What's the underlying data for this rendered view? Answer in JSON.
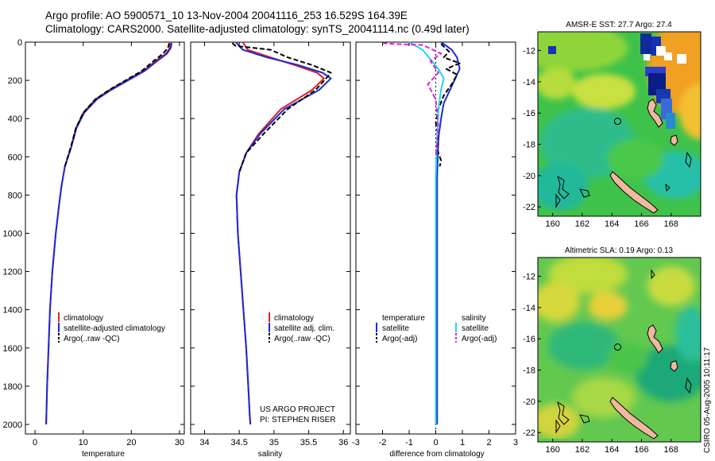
{
  "header": {
    "title_line1": "Argo profile: AO 5900571_10 13-Nov-2004 20041116_253 16.529S 164.39E",
    "title_line2": "Climatology: CARS2000. Satellite-adjusted climatology: synTS_20041114.nc (0.49d later)"
  },
  "colors": {
    "climatology": "#e02020",
    "satellite": "#1a2bd6",
    "argo": "#000000",
    "salinity_satellite": "#22d8e8",
    "salinity_argo": "#e020e0"
  },
  "project_note": {
    "line1": "US ARGO PROJECT",
    "line2": "PI: STEPHEN RISER"
  },
  "timestamp": "CSIRO 05-Aug-2005 10:11:17",
  "chart_data": [
    {
      "type": "line",
      "name": "temperature-profile",
      "xlabel": "temperature",
      "ylabel": "",
      "xlim": [
        -2,
        31
      ],
      "ylim": [
        0,
        2050
      ],
      "y_inverted": true,
      "xticks": [
        0,
        10,
        20,
        30
      ],
      "yticks": [
        0,
        200,
        400,
        600,
        800,
        1000,
        1200,
        1400,
        1600,
        1800,
        2000
      ],
      "series": [
        {
          "name": "climatology",
          "color_key": "climatology",
          "dash": false,
          "x": [
            28.2,
            28.0,
            27.2,
            25.0,
            22.5,
            19.0,
            15.5,
            12.5,
            10.0,
            8.5,
            7.5,
            6.2,
            5.5,
            5.0,
            4.3,
            3.6,
            3.1,
            2.8,
            2.5,
            2.35,
            2.3
          ],
          "y": [
            5,
            30,
            60,
            100,
            150,
            200,
            250,
            300,
            370,
            450,
            550,
            650,
            750,
            850,
            1000,
            1200,
            1400,
            1600,
            1800,
            1950,
            2000
          ]
        },
        {
          "name": "satellite-adjusted climatology",
          "color_key": "satellite",
          "dash": false,
          "x": [
            28.4,
            28.2,
            27.4,
            25.3,
            22.8,
            19.3,
            15.8,
            12.8,
            10.2,
            8.6,
            7.5,
            6.2,
            5.5,
            5.0,
            4.3,
            3.6,
            3.1,
            2.8,
            2.5,
            2.35,
            2.3
          ],
          "y": [
            5,
            30,
            60,
            100,
            150,
            200,
            250,
            300,
            370,
            450,
            550,
            650,
            750,
            850,
            1000,
            1200,
            1400,
            1600,
            1800,
            1950,
            2000
          ]
        },
        {
          "name": "Argo(..raw -QC)",
          "color_key": "argo",
          "dash": true,
          "x": [
            27.9,
            27.6,
            26.6,
            24.6,
            22.2,
            18.8,
            15.4,
            12.5,
            10.0,
            8.5,
            7.4,
            6.2
          ],
          "y": [
            5,
            30,
            60,
            100,
            150,
            200,
            250,
            300,
            370,
            450,
            550,
            650
          ]
        }
      ],
      "legend": {
        "placement": "lower-right",
        "entries": [
          "climatology",
          "satellite-adjusted climatology",
          "Argo(..raw -QC)"
        ]
      }
    },
    {
      "type": "line",
      "name": "salinity-profile",
      "xlabel": "salinity",
      "ylabel": "",
      "xlim": [
        33.8,
        36.1
      ],
      "ylim": [
        0,
        2050
      ],
      "y_inverted": true,
      "xticks": [
        34,
        34.5,
        35,
        35.5,
        36
      ],
      "series": [
        {
          "name": "climatology",
          "color_key": "climatology",
          "dash": false,
          "x": [
            34.55,
            34.62,
            34.95,
            35.3,
            35.62,
            35.72,
            35.55,
            35.1,
            34.78,
            34.6,
            34.5,
            34.46,
            34.48,
            34.52,
            34.56,
            34.6,
            34.63,
            34.65,
            34.66
          ],
          "y": [
            0,
            40,
            80,
            120,
            160,
            190,
            250,
            350,
            480,
            580,
            680,
            800,
            1000,
            1200,
            1400,
            1600,
            1800,
            1950,
            2000
          ]
        },
        {
          "name": "satellite adj. clim.",
          "color_key": "satellite",
          "dash": false,
          "x": [
            34.45,
            34.55,
            34.9,
            35.35,
            35.7,
            35.82,
            35.65,
            35.15,
            34.8,
            34.6,
            34.5,
            34.46,
            34.48,
            34.52,
            34.56,
            34.6,
            34.63,
            34.65,
            34.66
          ],
          "y": [
            0,
            40,
            80,
            120,
            160,
            190,
            250,
            350,
            480,
            580,
            680,
            800,
            1000,
            1200,
            1400,
            1600,
            1800,
            1950,
            2000
          ]
        },
        {
          "name": "Argo(..raw -QC)",
          "color_key": "argo",
          "dash": true,
          "x": [
            34.4,
            34.45,
            34.95,
            35.2,
            35.55,
            35.82,
            35.75,
            35.6,
            35.2,
            34.85,
            34.6,
            34.5
          ],
          "y": [
            5,
            20,
            40,
            80,
            120,
            160,
            190,
            250,
            350,
            480,
            580,
            680
          ]
        }
      ],
      "legend": {
        "placement": "lower-right",
        "entries": [
          "climatology",
          "satellite adj. clim.",
          "Argo(..raw -QC)"
        ]
      }
    },
    {
      "type": "line",
      "name": "difference-profile",
      "xlabel": "difference from climatology",
      "ylabel": "",
      "xlim": [
        -3,
        3
      ],
      "ylim": [
        0,
        2050
      ],
      "y_inverted": true,
      "xticks": [
        -3,
        -2,
        -1,
        0,
        1,
        2,
        3
      ],
      "series": [
        {
          "name": "temperature satellite",
          "color_key": "satellite",
          "dash": false,
          "x": [
            0.2,
            0.6,
            0.8,
            0.9,
            0.7,
            0.5,
            0.3,
            0.2,
            0.1,
            0.05,
            0.05,
            0.05
          ],
          "y": [
            0,
            40,
            80,
            140,
            200,
            260,
            320,
            400,
            500,
            700,
            1000,
            2000
          ]
        },
        {
          "name": "temperature Argo(-adj)",
          "color_key": "argo",
          "dash": true,
          "x": [
            0.2,
            0.5,
            0.3,
            0.9,
            0.4,
            0.8,
            0.6,
            0.3,
            0.1,
            0.0,
            0.1,
            0.05,
            0.2,
            0.15
          ],
          "y": [
            10,
            50,
            80,
            110,
            140,
            170,
            220,
            280,
            350,
            420,
            500,
            560,
            620,
            650
          ]
        },
        {
          "name": "salinity satellite",
          "color_key": "salinity_satellite",
          "dash": false,
          "x": [
            -1.0,
            -0.5,
            -0.2,
            0.1,
            0.3,
            0.2,
            0.1,
            0.05,
            0.0,
            0.0,
            0.0
          ],
          "y": [
            0,
            40,
            90,
            140,
            190,
            250,
            350,
            500,
            700,
            1000,
            2000
          ]
        },
        {
          "name": "salinity Argo(-adj)",
          "color_key": "salinity_argo",
          "dash": true,
          "x": [
            -2.0,
            -1.5,
            -0.5,
            0.2,
            -0.2,
            0.1,
            -0.3,
            0.0,
            0.1,
            0.0
          ],
          "y": [
            5,
            10,
            15,
            60,
            100,
            160,
            220,
            300,
            450,
            600
          ]
        }
      ],
      "legend": {
        "placement": "lower-center",
        "temperature": {
          "title": "temperature",
          "entries": [
            "satellite",
            "Argo(-adj)"
          ]
        },
        "salinity": {
          "title": "salinity",
          "entries": [
            "satellite",
            "Argo(-adj)"
          ]
        }
      }
    },
    {
      "type": "heatmap",
      "name": "sst-map",
      "title": "AMSR-E SST: 27.7 Argo: 27.4",
      "xlim": [
        159,
        170
      ],
      "ylim": [
        -22.6,
        -10.8
      ],
      "xticks": [
        160,
        162,
        164,
        166,
        168
      ],
      "xticklabels": [
        "160",
        "162",
        "164",
        "166",
        "168"
      ],
      "yticks": [
        -12,
        -14,
        -16,
        -18,
        -20,
        -22
      ],
      "yticklabels": [
        "-12",
        "-14",
        "-16",
        "-18",
        "-20",
        "-22"
      ],
      "float_position": [
        164.39,
        -16.529
      ]
    },
    {
      "type": "heatmap",
      "name": "sla-map",
      "title": "Altimetric SLA: 0.19 Argo: 0.13",
      "xlim": [
        159,
        170
      ],
      "ylim": [
        -22.6,
        -10.8
      ],
      "xticks": [
        160,
        162,
        164,
        166,
        168
      ],
      "xticklabels": [
        "160",
        "162",
        "164",
        "166",
        "168"
      ],
      "yticks": [
        -12,
        -14,
        -16,
        -18,
        -20,
        -22
      ],
      "yticklabels": [
        "-12",
        "-14",
        "-16",
        "-18",
        "-20",
        "-22"
      ],
      "float_position": [
        164.39,
        -16.529
      ]
    }
  ]
}
